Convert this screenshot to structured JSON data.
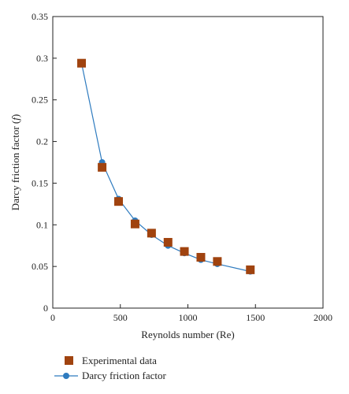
{
  "chart_data": {
    "type": "scatter",
    "title": "",
    "xlabel": "Reynolds number (Re)",
    "ylabel": "Darcy friction factor (f)",
    "ylabel_parts": {
      "prefix": "Darcy friction factor (",
      "symbol": "f",
      "suffix": ")"
    },
    "xlim": [
      0,
      2000
    ],
    "ylim": [
      0,
      0.35
    ],
    "x_ticks": [
      0,
      500,
      1000,
      1500,
      2000
    ],
    "x_tick_labels": [
      "0",
      "500",
      "1000",
      "1500",
      "2000"
    ],
    "y_ticks": [
      0,
      0.05,
      0.1,
      0.15,
      0.2,
      0.25,
      0.3,
      0.35
    ],
    "y_tick_labels": [
      "0",
      "0.05",
      "0.1",
      "0.15",
      "0.2",
      "0.25",
      "0.3",
      "0.35"
    ],
    "grid": false,
    "legend_position": "below-left",
    "series": [
      {
        "name": "Experimental data",
        "kind": "square-markers",
        "color": "#a0430f",
        "x": [
          213,
          365,
          487,
          609,
          731,
          853,
          974,
          1096,
          1218,
          1462
        ],
        "y": [
          0.294,
          0.169,
          0.128,
          0.101,
          0.09,
          0.079,
          0.068,
          0.061,
          0.056,
          0.046
        ]
      },
      {
        "name": "Darcy friction factor",
        "kind": "line-with-circles",
        "color": "#2e7bbf",
        "x": [
          213,
          365,
          487,
          609,
          731,
          853,
          974,
          1096,
          1218,
          1462
        ],
        "y": [
          0.294,
          0.175,
          0.131,
          0.105,
          0.088,
          0.075,
          0.066,
          0.058,
          0.053,
          0.044
        ]
      }
    ]
  }
}
